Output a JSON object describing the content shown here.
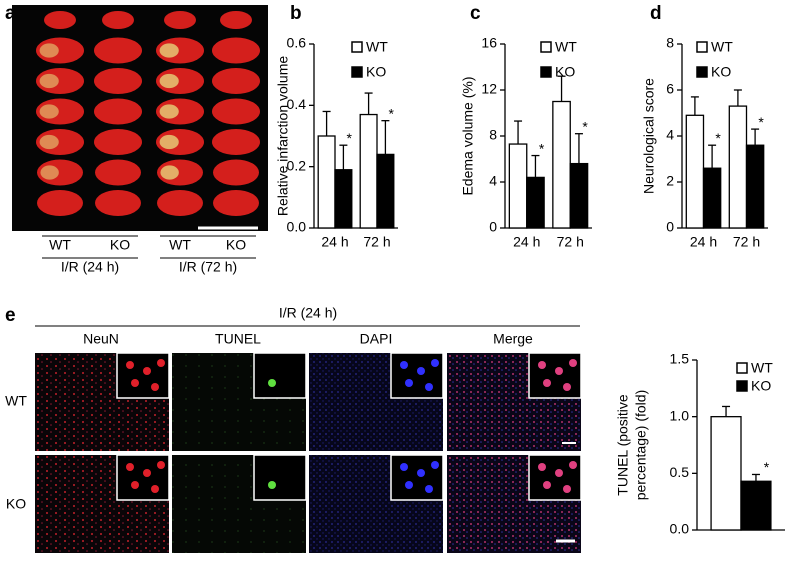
{
  "brain_panel": {
    "panel": "a",
    "groups": [
      {
        "labels": [
          "WT",
          "KO"
        ],
        "condition": "I/R (24 h)"
      },
      {
        "labels": [
          "WT",
          "KO"
        ],
        "condition": "I/R (72 h)"
      }
    ]
  },
  "micro_panel": {
    "panel": "e",
    "condition": "I/R (24 h)",
    "channels": [
      "NeuN",
      "TUNEL",
      "DAPI",
      "Merge"
    ],
    "rows": [
      "WT",
      "KO"
    ]
  },
  "chart_data": [
    {
      "type": "bar",
      "panel": "b",
      "ylabel": [
        "Relative infarction volume"
      ],
      "categories": [
        "24 h",
        "72 h"
      ],
      "series": [
        {
          "name": "WT",
          "color": "#ffffff",
          "values": [
            0.3,
            0.37
          ],
          "errors": [
            0.08,
            0.07
          ]
        },
        {
          "name": "KO",
          "color": "#000000",
          "values": [
            0.19,
            0.24
          ],
          "errors": [
            0.08,
            0.11
          ],
          "annotations": [
            "*",
            "*"
          ]
        }
      ],
      "ylim": [
        0,
        0.6
      ],
      "yticks": [
        {
          "value": 0,
          "label": "0.0"
        },
        0.2,
        0.4,
        0.6
      ],
      "legend": "upper left"
    },
    {
      "type": "bar",
      "panel": "c",
      "ylabel": [
        "Edema volume (%)"
      ],
      "categories": [
        "24 h",
        "72 h"
      ],
      "series": [
        {
          "name": "WT",
          "color": "#ffffff",
          "values": [
            7.3,
            11.0
          ],
          "errors": [
            2.0,
            2.2
          ]
        },
        {
          "name": "KO",
          "color": "#000000",
          "values": [
            4.4,
            5.6
          ],
          "errors": [
            1.9,
            2.6
          ],
          "annotations": [
            "*",
            "*"
          ]
        }
      ],
      "ylim": [
        0,
        16
      ],
      "yticks": [
        0,
        4,
        8,
        12,
        16
      ],
      "legend": "upper left"
    },
    {
      "type": "bar",
      "panel": "d",
      "ylabel": [
        "Neurological score"
      ],
      "categories": [
        "24 h",
        "72 h"
      ],
      "series": [
        {
          "name": "WT",
          "color": "#ffffff",
          "values": [
            4.9,
            5.3
          ],
          "errors": [
            0.8,
            0.7
          ]
        },
        {
          "name": "KO",
          "color": "#000000",
          "values": [
            2.6,
            3.6
          ],
          "errors": [
            1.0,
            0.7
          ],
          "annotations": [
            "*",
            "*"
          ]
        }
      ],
      "ylim": [
        0,
        8
      ],
      "yticks": [
        0,
        2,
        4,
        6,
        8
      ],
      "legend": "upper left"
    },
    {
      "type": "bar",
      "ylabel": [
        "TUNEL (positive",
        "percentage) (fold)"
      ],
      "categories": [
        null
      ],
      "series": [
        {
          "name": "WT",
          "color": "#ffffff",
          "values": [
            1.0
          ],
          "errors": [
            0.09
          ]
        },
        {
          "name": "KO",
          "color": "#000000",
          "values": [
            0.43
          ],
          "errors": [
            0.06
          ],
          "annotations": [
            "*"
          ]
        }
      ],
      "ylim": [
        0,
        1.5
      ],
      "yticks": [
        {
          "value": 0,
          "label": "0.0"
        },
        0.5,
        {
          "value": 1,
          "label": "1.0"
        },
        1.5
      ],
      "legend": "upper left"
    }
  ]
}
